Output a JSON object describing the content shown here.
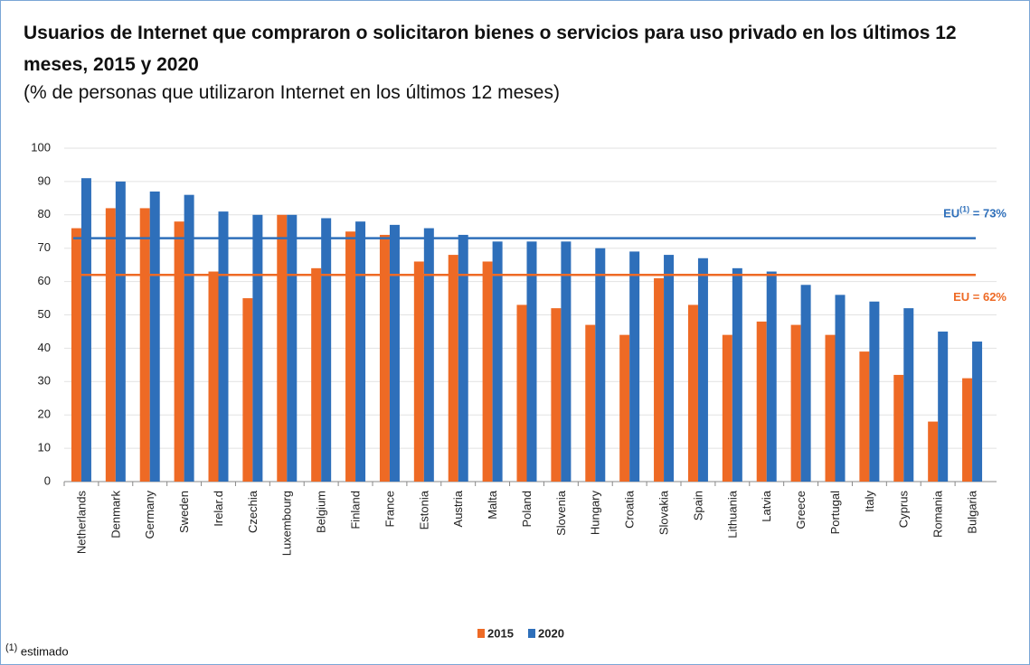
{
  "chart_data": {
    "type": "bar",
    "title": "Usuarios de Internet que compraron o solicitaron bienes o servicios para uso privado en los últimos 12 meses, 2015 y 2020",
    "subtitle": "(% de personas que utilizaron Internet en los últimos 12 meses)",
    "categories": [
      "Netherlands",
      "Denmark",
      "Germany",
      "Sweden",
      "Irelar.d",
      "Czechia",
      "Luxembourg",
      "Belgium",
      "Finland",
      "France",
      "Estonia",
      "Austria",
      "Malta",
      "Poland",
      "Slovenia",
      "Hungary",
      "Croatia",
      "Slovakia",
      "Spain",
      "Lithuania",
      "Latvia",
      "Greece",
      "Portugal",
      "Italy",
      "Cyprus",
      "Romania",
      "Bulgaria"
    ],
    "series": [
      {
        "name": "2015",
        "color": "#ee6a25",
        "values": [
          76,
          82,
          82,
          78,
          63,
          55,
          80,
          64,
          75,
          74,
          66,
          68,
          66,
          53,
          52,
          47,
          44,
          61,
          53,
          44,
          48,
          47,
          44,
          39,
          32,
          18,
          31
        ]
      },
      {
        "name": "2020",
        "color": "#2e6fba",
        "values": [
          91,
          90,
          87,
          86,
          81,
          80,
          80,
          79,
          78,
          77,
          76,
          74,
          72,
          72,
          72,
          70,
          69,
          68,
          67,
          64,
          63,
          59,
          56,
          54,
          52,
          45,
          42
        ]
      }
    ],
    "reference_lines": [
      {
        "value": 73,
        "color": "#2e6fba",
        "prefix": "EU",
        "sup": "(1)",
        "suffix": " = 73%"
      },
      {
        "value": 62,
        "color": "#ee6a25",
        "prefix": "EU",
        "suffix": " = 62%"
      }
    ],
    "ylim": [
      0,
      100
    ],
    "yticks": [
      0,
      10,
      20,
      30,
      40,
      50,
      60,
      70,
      80,
      90,
      100
    ],
    "grid": true,
    "legend": "bottom",
    "footnote": {
      "mark": "(1)",
      "text": "estimado"
    }
  }
}
